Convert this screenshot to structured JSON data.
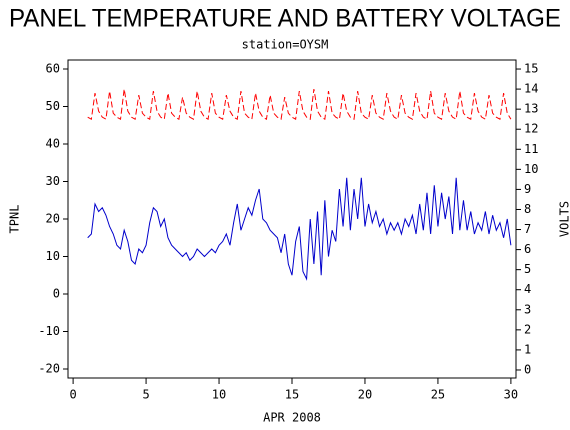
{
  "chart_data": {
    "type": "line",
    "title": "PANEL TEMPERATURE AND BATTERY VOLTAGE",
    "subtitle": "station=OYSM",
    "xlabel": "APR 2008",
    "ylabel": "TPNL",
    "y2label": "VOLTS",
    "xlim": [
      -0.35,
      30.35
    ],
    "xticks": [
      0,
      5,
      10,
      15,
      20,
      25,
      30
    ],
    "ylim": [
      -22.4,
      62.4
    ],
    "yticks": [
      -20,
      -10,
      0,
      10,
      20,
      30,
      40,
      50,
      60
    ],
    "y2lim": [
      -0.4,
      15.45
    ],
    "y2ticks": [
      0,
      1,
      2,
      3,
      4,
      5,
      6,
      7,
      8,
      9,
      10,
      11,
      12,
      13,
      14,
      15
    ],
    "x": [
      1,
      1.25,
      1.5,
      1.75,
      2,
      2.25,
      2.5,
      2.75,
      3,
      3.25,
      3.5,
      3.75,
      4,
      4.25,
      4.5,
      4.75,
      5,
      5.25,
      5.5,
      5.75,
      6,
      6.25,
      6.5,
      6.75,
      7,
      7.25,
      7.5,
      7.75,
      8,
      8.25,
      8.5,
      8.75,
      9,
      9.25,
      9.5,
      9.75,
      10,
      10.25,
      10.5,
      10.75,
      11,
      11.25,
      11.5,
      11.75,
      12,
      12.25,
      12.5,
      12.75,
      13,
      13.25,
      13.5,
      13.75,
      14,
      14.25,
      14.5,
      14.75,
      15,
      15.25,
      15.5,
      15.75,
      16,
      16.25,
      16.5,
      16.75,
      17,
      17.25,
      17.5,
      17.75,
      18,
      18.25,
      18.5,
      18.75,
      19,
      19.25,
      19.5,
      19.75,
      20,
      20.25,
      20.5,
      20.75,
      21,
      21.25,
      21.5,
      21.75,
      22,
      22.25,
      22.5,
      22.75,
      23,
      23.25,
      23.5,
      23.75,
      24,
      24.25,
      24.5,
      24.75,
      25,
      25.25,
      25.5,
      25.75,
      26,
      26.25,
      26.5,
      26.75,
      27,
      27.25,
      27.5,
      27.75,
      28,
      28.25,
      28.5,
      28.75,
      29,
      29.25,
      29.5,
      29.75,
      30
    ],
    "series": [
      {
        "name": "TPNL",
        "color": "#0000cc",
        "axis": "y",
        "dashed": false,
        "values": [
          15,
          16,
          24,
          22,
          23,
          21,
          18,
          16,
          13,
          12,
          17,
          14,
          9,
          8,
          12,
          11,
          13,
          19,
          23,
          22,
          18,
          20,
          15,
          13,
          12,
          11,
          10,
          11,
          9,
          10,
          12,
          11,
          10,
          11,
          12,
          11,
          13,
          14,
          16,
          13,
          19,
          24,
          17,
          20,
          23,
          21,
          25,
          28,
          20,
          19,
          17,
          16,
          15,
          11,
          16,
          8,
          5,
          14,
          18,
          6,
          4,
          20,
          8,
          22,
          5,
          25,
          10,
          17,
          14,
          28,
          18,
          31,
          17,
          28,
          20,
          31,
          18,
          24,
          19,
          22,
          18,
          20,
          16,
          19,
          17,
          19,
          16,
          20,
          18,
          21,
          16,
          24,
          17,
          27,
          16,
          29,
          18,
          27,
          20,
          26,
          16,
          31,
          17,
          25,
          17,
          22,
          16,
          19,
          17,
          22,
          16,
          21,
          17,
          19,
          15,
          20,
          13
        ]
      },
      {
        "name": "VOLTS",
        "color": "#ff0000",
        "axis": "y2",
        "dashed": true,
        "values": [
          12.6,
          12.5,
          13.8,
          12.9,
          12.6,
          12.5,
          13.9,
          12.8,
          12.6,
          12.5,
          14.0,
          12.9,
          12.6,
          12.5,
          13.7,
          12.8,
          12.6,
          12.5,
          13.9,
          12.9,
          12.6,
          12.5,
          13.8,
          12.8,
          12.6,
          12.5,
          13.6,
          12.8,
          12.6,
          12.5,
          13.9,
          12.9,
          12.6,
          12.5,
          13.8,
          12.8,
          12.6,
          12.5,
          13.7,
          12.9,
          12.6,
          12.5,
          13.9,
          12.8,
          12.6,
          12.5,
          13.8,
          12.9,
          12.6,
          12.5,
          13.7,
          12.8,
          12.6,
          12.5,
          13.6,
          12.8,
          12.6,
          12.5,
          13.9,
          12.9,
          12.6,
          12.5,
          14.0,
          12.9,
          12.6,
          12.5,
          13.9,
          12.8,
          12.6,
          12.5,
          13.8,
          12.9,
          12.6,
          12.5,
          13.9,
          12.8,
          12.6,
          12.5,
          13.7,
          12.8,
          12.6,
          12.5,
          13.8,
          12.9,
          12.6,
          12.5,
          13.7,
          12.8,
          12.6,
          12.5,
          13.8,
          12.9,
          12.6,
          12.5,
          13.9,
          12.8,
          12.6,
          12.5,
          13.8,
          12.9,
          12.6,
          12.5,
          13.9,
          12.8,
          12.6,
          12.5,
          13.8,
          12.9,
          12.6,
          12.5,
          13.7,
          12.8,
          12.6,
          12.5,
          13.8,
          12.8,
          12.5
        ]
      }
    ]
  }
}
